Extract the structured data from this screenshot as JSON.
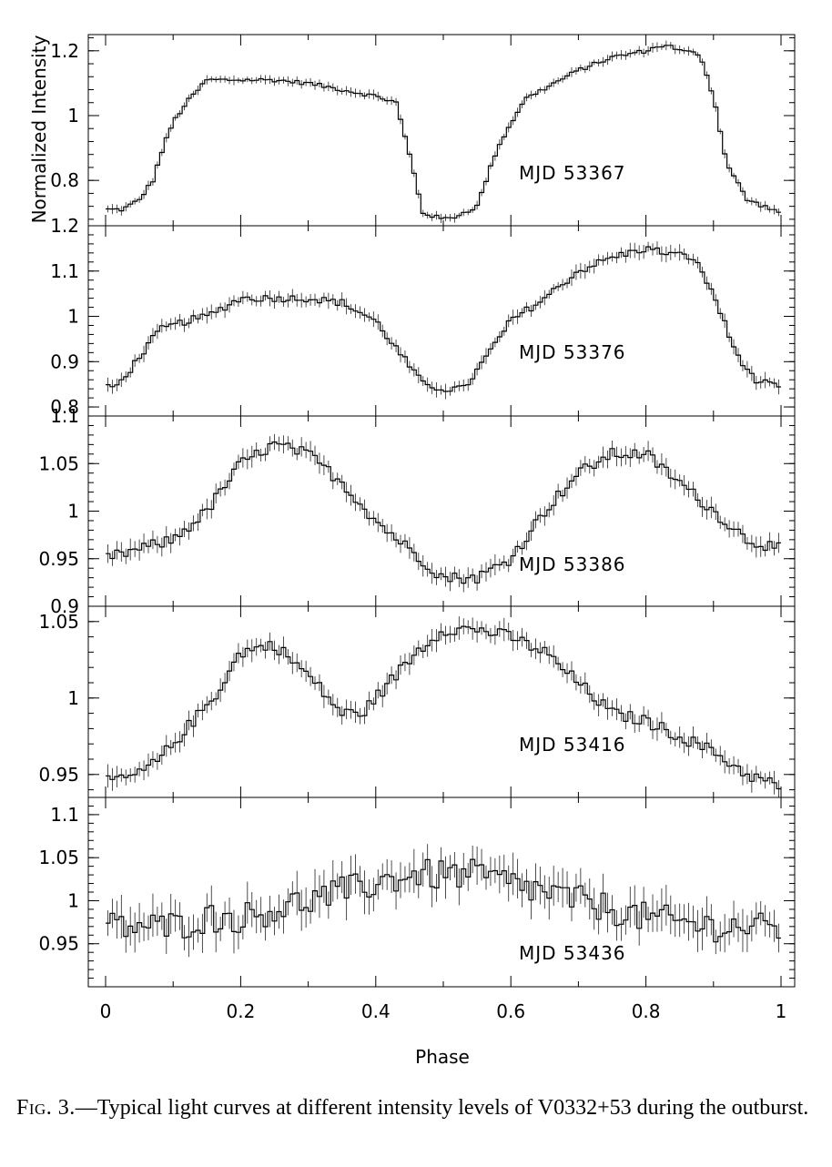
{
  "figure": {
    "ylabel": "Normalized Intensity",
    "xlabel": "Phase",
    "xticks": [
      "0",
      "0.2",
      "0.4",
      "0.6",
      "0.8",
      "1"
    ]
  },
  "caption": {
    "fig_label": "Fig. 3.",
    "text": "—Typical light curves at different intensity levels of V0332+53 during the outburst."
  },
  "chart_data": [
    {
      "type": "line",
      "label": "MJD 53367",
      "xlim": [
        0,
        1
      ],
      "ylim": [
        0.66,
        1.25
      ],
      "yticks": [
        "0.8",
        "1",
        "1.2"
      ],
      "x": [
        0.0,
        0.025,
        0.05,
        0.07,
        0.085,
        0.1,
        0.12,
        0.15,
        0.2,
        0.25,
        0.3,
        0.35,
        0.4,
        0.43,
        0.45,
        0.47,
        0.5,
        0.52,
        0.55,
        0.58,
        0.62,
        0.7,
        0.75,
        0.8,
        0.83,
        0.85,
        0.88,
        0.9,
        0.92,
        0.95,
        1.0
      ],
      "y": [
        0.71,
        0.71,
        0.74,
        0.8,
        0.9,
        0.98,
        1.04,
        1.11,
        1.11,
        1.11,
        1.1,
        1.08,
        1.06,
        1.04,
        0.88,
        0.7,
        0.68,
        0.69,
        0.72,
        0.9,
        1.05,
        1.14,
        1.18,
        1.2,
        1.22,
        1.2,
        1.19,
        1.06,
        0.85,
        0.74,
        0.7
      ]
    },
    {
      "type": "line",
      "label": "MJD 53376",
      "xlim": [
        0,
        1
      ],
      "ylim": [
        0.78,
        1.2
      ],
      "yticks": [
        "0.8",
        "0.9",
        "1",
        "1.1",
        "1.2"
      ],
      "x": [
        0.0,
        0.02,
        0.05,
        0.08,
        0.12,
        0.15,
        0.2,
        0.25,
        0.3,
        0.35,
        0.4,
        0.43,
        0.47,
        0.5,
        0.53,
        0.55,
        0.6,
        0.65,
        0.7,
        0.75,
        0.8,
        0.83,
        0.87,
        0.9,
        0.93,
        0.96,
        1.0
      ],
      "y": [
        0.84,
        0.85,
        0.91,
        0.97,
        0.99,
        1.0,
        1.04,
        1.04,
        1.04,
        1.03,
        0.99,
        0.93,
        0.85,
        0.84,
        0.84,
        0.88,
        0.99,
        1.04,
        1.1,
        1.13,
        1.15,
        1.14,
        1.13,
        1.05,
        0.93,
        0.86,
        0.84
      ]
    },
    {
      "type": "line",
      "label": "MJD 53386",
      "xlim": [
        0,
        1
      ],
      "ylim": [
        0.9,
        1.1
      ],
      "yticks": [
        "0.9",
        "0.95",
        "1",
        "1.05",
        "1.1"
      ],
      "x": [
        0.0,
        0.05,
        0.1,
        0.15,
        0.2,
        0.25,
        0.3,
        0.35,
        0.4,
        0.45,
        0.5,
        0.55,
        0.6,
        0.65,
        0.7,
        0.75,
        0.8,
        0.85,
        0.9,
        0.95,
        1.0
      ],
      "y": [
        0.95,
        0.96,
        0.97,
        1.0,
        1.05,
        1.07,
        1.06,
        1.03,
        0.99,
        0.96,
        0.93,
        0.93,
        0.95,
        1.0,
        1.04,
        1.06,
        1.06,
        1.03,
        1.0,
        0.97,
        0.96
      ]
    },
    {
      "type": "line",
      "label": "MJD 53416",
      "xlim": [
        0,
        1
      ],
      "ylim": [
        0.935,
        1.06
      ],
      "yticks": [
        "0.95",
        "1",
        "1.05"
      ],
      "x": [
        0.0,
        0.05,
        0.08,
        0.12,
        0.16,
        0.2,
        0.25,
        0.3,
        0.35,
        0.38,
        0.42,
        0.46,
        0.5,
        0.55,
        0.6,
        0.65,
        0.7,
        0.75,
        0.8,
        0.85,
        0.9,
        0.95,
        1.0
      ],
      "y": [
        0.945,
        0.95,
        0.96,
        0.98,
        1.0,
        1.03,
        1.035,
        1.015,
        0.99,
        0.99,
        1.01,
        1.03,
        1.045,
        1.045,
        1.04,
        1.03,
        1.01,
        0.99,
        0.985,
        0.975,
        0.965,
        0.95,
        0.942
      ]
    },
    {
      "type": "line",
      "label": "MJD 53436",
      "xlim": [
        0,
        1
      ],
      "ylim": [
        0.9,
        1.12
      ],
      "yticks": [
        "0.95",
        "1",
        "1.05",
        "1.1"
      ],
      "x": [
        0.0,
        0.05,
        0.1,
        0.15,
        0.2,
        0.25,
        0.3,
        0.35,
        0.4,
        0.45,
        0.5,
        0.55,
        0.6,
        0.65,
        0.7,
        0.75,
        0.8,
        0.85,
        0.9,
        0.95,
        1.0
      ],
      "y": [
        0.97,
        0.97,
        0.97,
        0.98,
        0.98,
        0.99,
        1.0,
        1.01,
        1.02,
        1.03,
        1.03,
        1.03,
        1.02,
        1.01,
        1.0,
        0.99,
        0.98,
        0.975,
        0.97,
        0.97,
        0.965
      ]
    }
  ]
}
